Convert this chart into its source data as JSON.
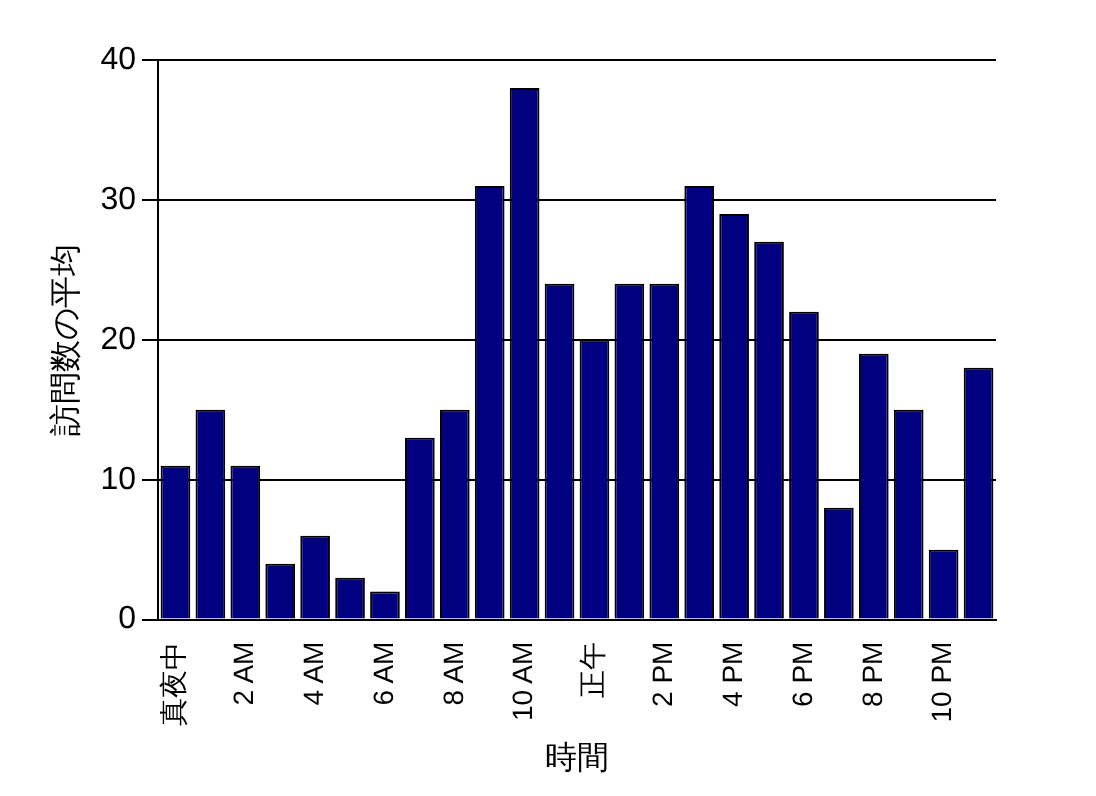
{
  "chart_data": {
    "type": "bar",
    "xlabel": "時間",
    "ylabel": "訪問数の平均",
    "categories": [
      "真夜中",
      null,
      "2 AM",
      null,
      "4 AM",
      null,
      "6 AM",
      null,
      "8 AM",
      null,
      "10 AM",
      null,
      "正午",
      null,
      "2 PM",
      null,
      "4 PM",
      null,
      "6 PM",
      null,
      "8 PM",
      null,
      "10 PM",
      null
    ],
    "values": [
      11,
      15,
      11,
      4,
      6,
      3,
      2,
      13,
      15,
      31,
      38,
      24,
      20,
      24,
      24,
      31,
      29,
      27,
      22,
      8,
      19,
      15,
      5,
      18
    ],
    "color": "#000080",
    "ylim": [
      0,
      40
    ],
    "yticks": [
      0,
      10,
      20,
      30,
      40
    ],
    "grid": "y",
    "legend": false
  }
}
